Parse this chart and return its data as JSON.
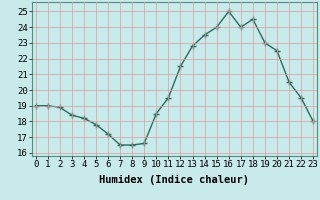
{
  "x": [
    0,
    1,
    2,
    3,
    4,
    5,
    6,
    7,
    8,
    9,
    10,
    11,
    12,
    13,
    14,
    15,
    16,
    17,
    18,
    19,
    20,
    21,
    22,
    23
  ],
  "y": [
    19.0,
    19.0,
    18.9,
    18.4,
    18.2,
    17.8,
    17.2,
    16.5,
    16.5,
    16.6,
    18.5,
    19.5,
    21.5,
    22.8,
    23.5,
    24.0,
    25.0,
    24.0,
    24.5,
    23.0,
    22.5,
    20.5,
    19.5,
    18.0
  ],
  "line_color": "#2e6b5e",
  "marker": "+",
  "marker_size": 4,
  "marker_linewidth": 1.0,
  "background_color": "#c8eaea",
  "grid_color": "#d4a0a0",
  "xlabel": "Humidex (Indice chaleur)",
  "xlabel_fontsize": 7.5,
  "yticks": [
    16,
    17,
    18,
    19,
    20,
    21,
    22,
    23,
    24,
    25
  ],
  "xticks": [
    0,
    1,
    2,
    3,
    4,
    5,
    6,
    7,
    8,
    9,
    10,
    11,
    12,
    13,
    14,
    15,
    16,
    17,
    18,
    19,
    20,
    21,
    22,
    23
  ],
  "xlim": [
    -0.3,
    23.3
  ],
  "ylim": [
    15.8,
    25.6
  ],
  "tick_label_size": 6.5,
  "linewidth": 1.0
}
